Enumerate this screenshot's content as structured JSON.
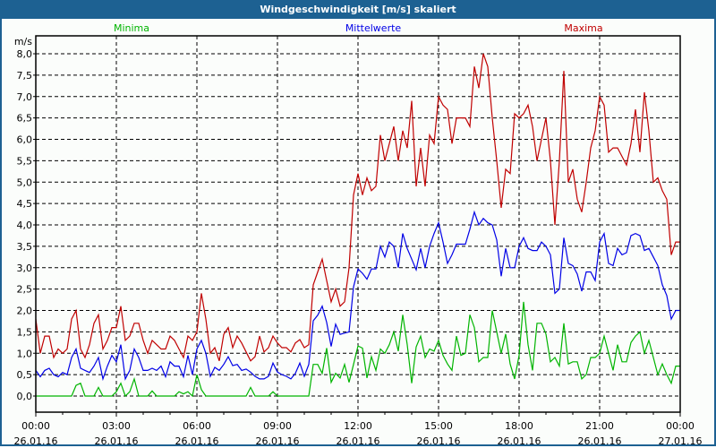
{
  "window": {
    "title": "Windgeschwindigkeit [m/s] skaliert"
  },
  "chart_data": {
    "type": "line",
    "title": "Windgeschwindigkeit [m/s] skaliert",
    "ylabel": "m/s",
    "xlabel": "",
    "ylim": [
      -0.4,
      8.4
    ],
    "xlim_hours": [
      0,
      24
    ],
    "sample_interval_minutes": 10,
    "grid": true,
    "legend_placement": "top",
    "yticks": [
      "0,0",
      "0,5",
      "1,0",
      "1,5",
      "2,0",
      "2,5",
      "3,0",
      "3,5",
      "4,0",
      "4,5",
      "5,0",
      "5,5",
      "6,0",
      "6,5",
      "7,0",
      "7,5",
      "8,0"
    ],
    "ytick_values": [
      0,
      0.5,
      1,
      1.5,
      2,
      2.5,
      3,
      3.5,
      4,
      4.5,
      5,
      5.5,
      6,
      6.5,
      7,
      7.5,
      8
    ],
    "xticks": [
      {
        "hour": 0,
        "time": "00:00",
        "date": "26.01.16"
      },
      {
        "hour": 3,
        "time": "03:00",
        "date": "26.01.16"
      },
      {
        "hour": 6,
        "time": "06:00",
        "date": "26.01.16"
      },
      {
        "hour": 9,
        "time": "09:00",
        "date": "26.01.16"
      },
      {
        "hour": 12,
        "time": "12:00",
        "date": "26.01.16"
      },
      {
        "hour": 15,
        "time": "15:00",
        "date": "26.01.16"
      },
      {
        "hour": 18,
        "time": "18:00",
        "date": "26.01.16"
      },
      {
        "hour": 21,
        "time": "21:00",
        "date": "26.01.16"
      },
      {
        "hour": 24,
        "time": "00:00",
        "date": "27.01.16"
      }
    ],
    "series": [
      {
        "name": "Minima",
        "color": "#00b400",
        "values": [
          0,
          0,
          0,
          0,
          0,
          0,
          0,
          0,
          0,
          0.25,
          0.3,
          0,
          0,
          0,
          0.2,
          0,
          0,
          0,
          0.1,
          0.3,
          0,
          0.1,
          0.4,
          0,
          0,
          0,
          0.12,
          0,
          0,
          0,
          0,
          0,
          0.1,
          0.05,
          0.1,
          0,
          0.5,
          0.15,
          0,
          0,
          0,
          0,
          0,
          0,
          0,
          0,
          0,
          0,
          0.2,
          0,
          0,
          0,
          0,
          0.1,
          0,
          0,
          0,
          0,
          0,
          0,
          0,
          0,
          0.74,
          0.74,
          0.53,
          1.12,
          0.32,
          0.53,
          0.42,
          0.74,
          0.32,
          0.74,
          1.17,
          1.12,
          0.42,
          0.92,
          0.6,
          1.1,
          1.0,
          1.2,
          1.5,
          1.05,
          1.9,
          1.2,
          0.3,
          1.15,
          1.4,
          0.9,
          1.1,
          1.05,
          1.3,
          0.95,
          0.75,
          0.6,
          1.4,
          0.95,
          1.0,
          1.9,
          1.6,
          0.8,
          0.9,
          0.9,
          2.0,
          1.5,
          1.0,
          1.45,
          0.75,
          0.4,
          0.95,
          2.2,
          1.2,
          0.6,
          1.7,
          1.7,
          1.45,
          0.8,
          0.9,
          0.7,
          1.7,
          0.75,
          0.8,
          0.8,
          0.4,
          0.5,
          0.9,
          0.9,
          1.0,
          1.4,
          1.0,
          0.6,
          1.2,
          0.8,
          0.8,
          1.25,
          1.4,
          1.5,
          1.0,
          1.3,
          0.9,
          0.5,
          0.75,
          0.5,
          0.3,
          0.7,
          0.7
        ]
      },
      {
        "name": "Mittelwerte",
        "color": "#0000e6",
        "values": [
          0.6,
          0.45,
          0.6,
          0.65,
          0.5,
          0.45,
          0.55,
          0.5,
          0.9,
          1.1,
          0.65,
          0.6,
          0.55,
          0.7,
          0.9,
          0.4,
          0.7,
          0.95,
          0.8,
          1.2,
          0.4,
          0.6,
          1.1,
          0.9,
          0.6,
          0.6,
          0.65,
          0.6,
          0.7,
          0.45,
          0.8,
          0.7,
          0.7,
          0.45,
          0.95,
          0.5,
          1.1,
          1.3,
          1.0,
          0.46,
          0.67,
          0.6,
          0.74,
          0.92,
          0.71,
          0.74,
          0.6,
          0.63,
          0.56,
          0.46,
          0.4,
          0.4,
          0.46,
          0.77,
          0.56,
          0.5,
          0.46,
          0.4,
          0.53,
          0.77,
          0.46,
          0.74,
          1.76,
          1.89,
          2.1,
          1.72,
          1.16,
          1.68,
          1.44,
          1.47,
          1.5,
          2.55,
          2.97,
          2.87,
          2.73,
          2.97,
          2.97,
          3.5,
          3.25,
          3.6,
          3.5,
          3.0,
          3.8,
          3.45,
          3.2,
          2.95,
          3.45,
          3.0,
          3.5,
          3.8,
          4.05,
          3.6,
          3.1,
          3.3,
          3.55,
          3.55,
          3.55,
          3.9,
          4.3,
          4.0,
          4.15,
          4.05,
          4.0,
          3.65,
          2.8,
          3.45,
          3.0,
          3.0,
          3.5,
          3.7,
          3.45,
          3.4,
          3.4,
          3.6,
          3.5,
          3.3,
          2.4,
          2.5,
          3.7,
          3.1,
          3.05,
          2.85,
          2.45,
          2.9,
          2.9,
          2.7,
          3.6,
          3.8,
          3.1,
          3.05,
          3.45,
          3.3,
          3.35,
          3.75,
          3.8,
          3.75,
          3.4,
          3.45,
          3.25,
          3.05,
          2.6,
          2.35,
          1.8,
          2.0,
          2.0
        ]
      },
      {
        "name": "Maxima",
        "color": "#c00000",
        "values": [
          1.8,
          1.0,
          1.4,
          1.4,
          0.9,
          1.1,
          1.0,
          1.1,
          1.8,
          2.0,
          1.1,
          0.9,
          1.2,
          1.7,
          1.9,
          1.1,
          1.3,
          1.6,
          1.6,
          2.1,
          1.3,
          1.4,
          1.7,
          1.7,
          1.3,
          1.0,
          1.3,
          1.2,
          1.1,
          1.1,
          1.4,
          1.3,
          1.1,
          0.9,
          1.4,
          1.3,
          1.5,
          2.4,
          1.8,
          1.0,
          1.13,
          0.82,
          1.44,
          1.6,
          1.13,
          1.4,
          1.24,
          1.03,
          0.82,
          0.92,
          1.4,
          1.03,
          1.13,
          1.4,
          1.24,
          1.13,
          1.13,
          1.03,
          1.24,
          1.32,
          1.13,
          1.2,
          2.6,
          2.9,
          3.2,
          2.7,
          2.2,
          2.5,
          2.1,
          2.2,
          3.0,
          4.7,
          5.2,
          4.7,
          5.1,
          4.8,
          4.9,
          6.1,
          5.5,
          5.9,
          6.3,
          5.5,
          6.2,
          5.8,
          6.9,
          4.9,
          5.8,
          4.9,
          6.1,
          5.9,
          7.0,
          6.8,
          6.7,
          5.9,
          6.5,
          6.5,
          6.5,
          6.3,
          7.7,
          7.2,
          8.0,
          7.7,
          6.5,
          5.5,
          4.4,
          5.3,
          5.2,
          6.6,
          6.5,
          6.6,
          6.8,
          6.3,
          5.5,
          6.0,
          6.5,
          5.5,
          4.0,
          5.5,
          7.6,
          5.0,
          5.3,
          4.6,
          4.3,
          5.0,
          5.8,
          6.2,
          7.0,
          6.8,
          5.7,
          5.8,
          5.8,
          5.6,
          5.4,
          5.9,
          6.7,
          5.7,
          7.1,
          6.2,
          5.0,
          5.1,
          4.8,
          4.6,
          3.3,
          3.6,
          3.6
        ]
      }
    ]
  }
}
